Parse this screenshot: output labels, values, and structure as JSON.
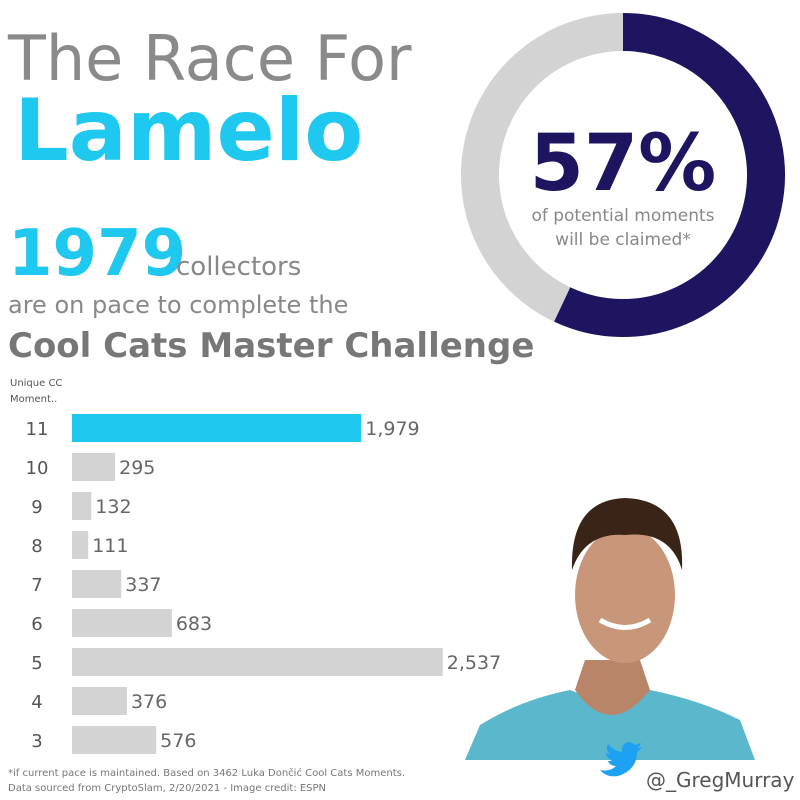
{
  "header": {
    "title_line1": "The Race For",
    "title_line2": "Lamelo",
    "headline_number": "1979",
    "headline_unit": "collectors",
    "line2": "are on pace to complete the",
    "line3": "Cool Cats Master Challenge"
  },
  "chart_data": [
    {
      "type": "pie",
      "values": [
        57,
        43
      ],
      "value_labels": [
        "57%",
        null
      ],
      "colors": [
        "#1e1560",
        "#d3d3d3"
      ],
      "caption_lines": [
        "of potential moments",
        "will be claimed*"
      ]
    },
    {
      "type": "bar",
      "orientation": "horizontal",
      "y_label_lines": [
        "Unique CC",
        "Moment.."
      ],
      "categories": [
        "11",
        "10",
        "9",
        "8",
        "7",
        "6",
        "5",
        "4",
        "3"
      ],
      "values": [
        1979,
        295,
        132,
        111,
        337,
        683,
        2537,
        376,
        576
      ],
      "value_labels": [
        "1,979",
        "295",
        "132",
        "111",
        "337",
        "683",
        "2,537",
        "376",
        "576"
      ],
      "colors": [
        "#1ec8ee",
        "#d3d3d3",
        "#d3d3d3",
        "#d3d3d3",
        "#d3d3d3",
        "#d3d3d3",
        "#d3d3d3",
        "#d3d3d3",
        "#d3d3d3"
      ],
      "xlim": [
        0,
        2600
      ]
    }
  ],
  "footer": {
    "note_line1": "*if current pace is maintained. Based on 3462 Luka  Dončić Cool Cats Moments.",
    "note_line2": "Data sourced from CryptoSlam, 2/20/2021 - Image credit: ESPN",
    "handle": "@_GregMurray"
  }
}
